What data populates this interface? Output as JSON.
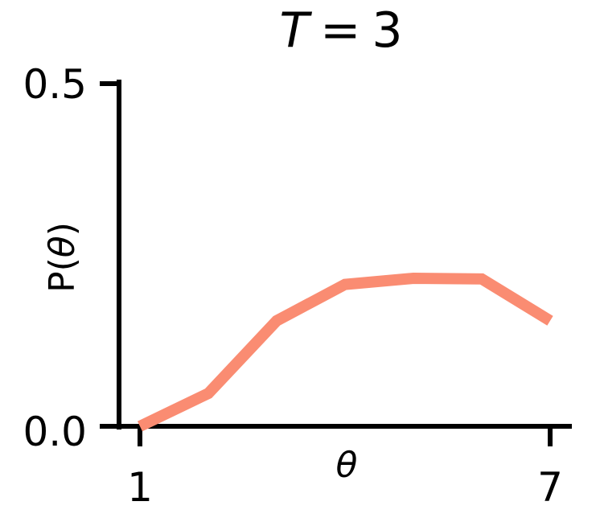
{
  "chart_data": {
    "type": "line",
    "title": {
      "variable": "T",
      "operator": "=",
      "value": "3"
    },
    "xlabel": "θ",
    "ylabel": "P(θ)",
    "x": [
      1,
      2,
      3,
      4,
      5,
      6,
      7
    ],
    "series": [
      {
        "values": [
          0.0,
          0.048,
          0.154,
          0.207,
          0.216,
          0.215,
          0.154
        ],
        "color": "#FA8C72"
      }
    ],
    "xlim": [
      1,
      7
    ],
    "ylim": [
      0.0,
      0.5
    ],
    "xticks": [
      "1",
      "7"
    ],
    "yticks": [
      "0.0",
      "0.5"
    ],
    "grid": false,
    "legend": "none",
    "spines": "left and bottom only"
  }
}
